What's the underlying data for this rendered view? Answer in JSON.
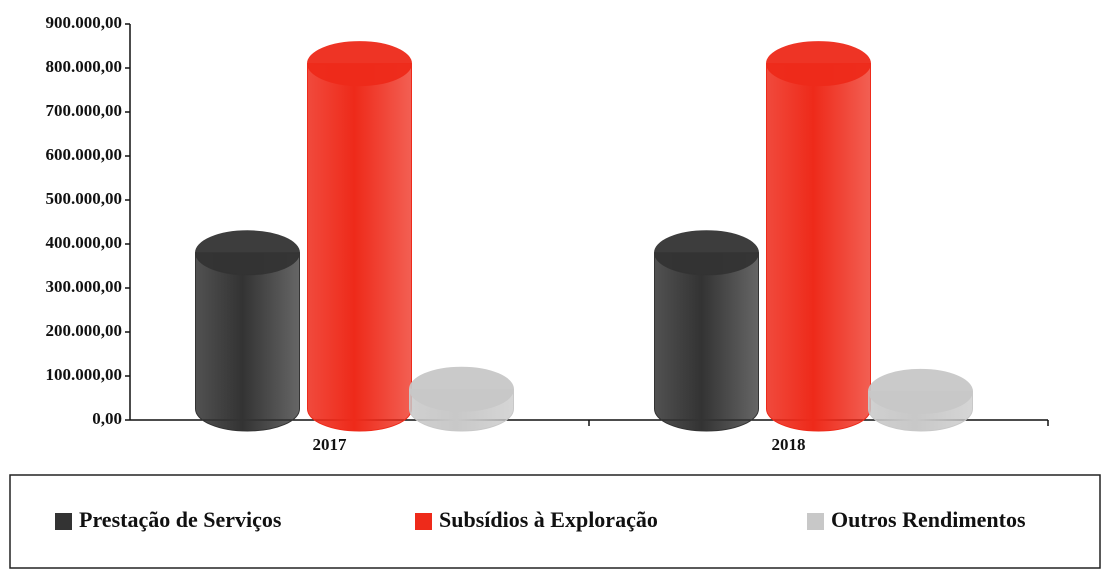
{
  "chart_data": {
    "type": "bar",
    "categories": [
      "2017",
      "2018"
    ],
    "series": [
      {
        "name": "Prestação de Serviços",
        "color": "#333333",
        "values": [
          430000,
          430000
        ]
      },
      {
        "name": "Subsídios à Exploração",
        "color": "#ee2a1a",
        "values": [
          860000,
          860000
        ]
      },
      {
        "name": "Outros Rendimentos",
        "color": "#c8c8c8",
        "values": [
          120000,
          115000
        ]
      }
    ],
    "ylim": [
      0,
      900000
    ],
    "yticks": [
      {
        "value": 0,
        "label": "0,00"
      },
      {
        "value": 100000,
        "label": "100.000,00"
      },
      {
        "value": 200000,
        "label": "200.000,00"
      },
      {
        "value": 300000,
        "label": "300.000,00"
      },
      {
        "value": 400000,
        "label": "400.000,00"
      },
      {
        "value": 500000,
        "label": "500.000,00"
      },
      {
        "value": 600000,
        "label": "600.000,00"
      },
      {
        "value": 700000,
        "label": "700.000,00"
      },
      {
        "value": 800000,
        "label": "800.000,00"
      },
      {
        "value": 900000,
        "label": "900.000,00"
      }
    ],
    "legend": "bottom"
  }
}
